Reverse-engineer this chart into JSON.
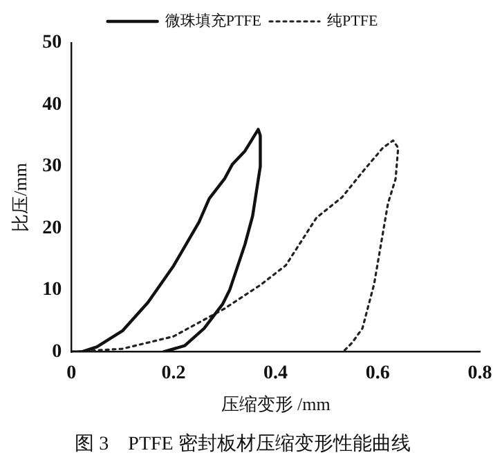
{
  "chart_data": {
    "type": "line",
    "title": "图 3　PTFE 密封板材压缩变形性能曲线",
    "xlabel": "压缩变形 /mm",
    "ylabel": "比压/mm",
    "xlim": [
      0,
      0.8
    ],
    "xticks": [
      0,
      0.2,
      0.4,
      0.6,
      0.8
    ],
    "ylim": [
      0,
      50
    ],
    "yticks": [
      0,
      10,
      20,
      30,
      40,
      50
    ],
    "grid": false,
    "legend": "top",
    "marker": "none",
    "series": [
      {
        "name": "微珠填充PTFE",
        "color": "#111111",
        "line_style": "solid",
        "x": [
          0,
          0.02,
          0.05,
          0.1,
          0.15,
          0.2,
          0.25,
          0.27,
          0.3,
          0.315,
          0.34,
          0.366,
          0.37,
          0.37,
          0.355,
          0.34,
          0.31,
          0.296,
          0.26,
          0.222,
          0.18
        ],
        "values": [
          0,
          0,
          0.8,
          3.4,
          8,
          13.9,
          21,
          24.8,
          28,
          30.3,
          32.5,
          36,
          35,
          30,
          22,
          17.4,
          10,
          7.7,
          3.8,
          1,
          0
        ]
      },
      {
        "name": "纯PTFE",
        "color": "#222222",
        "line_style": "dotted",
        "x": [
          0,
          0.1,
          0.2,
          0.3,
          0.37,
          0.42,
          0.48,
          0.53,
          0.574,
          0.61,
          0.63,
          0.64,
          0.635,
          0.62,
          0.593,
          0.57,
          0.55,
          0.532
        ],
        "values": [
          0,
          0.5,
          2.5,
          7,
          10.8,
          14,
          21.7,
          25,
          29.5,
          33,
          34.2,
          33,
          28,
          24,
          11,
          3.8,
          1.5,
          0
        ]
      }
    ]
  }
}
